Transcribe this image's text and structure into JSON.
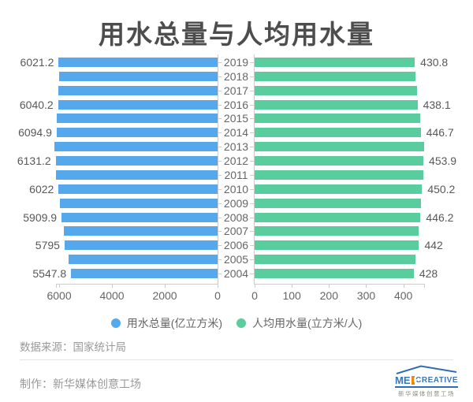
{
  "chart_data": {
    "type": "bar",
    "orientation": "horizontal-bidirectional",
    "title": "用水总量与人均用水量",
    "categories": [
      "2019",
      "2018",
      "2017",
      "2016",
      "2015",
      "2014",
      "2013",
      "2012",
      "2011",
      "2010",
      "2009",
      "2008",
      "2007",
      "2006",
      "2005",
      "2004"
    ],
    "series": [
      {
        "name": "用水总量(亿立方米)",
        "side": "left",
        "color": "#55A8EC",
        "values": [
          6021.2,
          6015.5,
          6043.4,
          6040.2,
          6103.2,
          6094.9,
          6183.4,
          6131.2,
          6107.2,
          6022,
          5965.2,
          5909.9,
          5818.7,
          5795,
          5633,
          5547.8
        ],
        "data_labels": [
          "6021.2",
          "",
          "",
          "6040.2",
          "",
          "6094.9",
          "",
          "6131.2",
          "",
          "6022",
          "",
          "5909.9",
          "",
          "5795",
          "",
          "5547.8"
        ],
        "axis_ticks": [
          "6000",
          "4000",
          "2000",
          "0"
        ],
        "axis_reversed": true,
        "axis_max": 6150
      },
      {
        "name": "人均用水量(立方米/人)",
        "side": "right",
        "color": "#5ACD9E",
        "values": [
          430.8,
          431.9,
          435.9,
          438.1,
          445.1,
          446.7,
          455.5,
          453.9,
          454.4,
          450.2,
          448,
          446.2,
          441.5,
          442,
          432.1,
          428
        ],
        "data_labels": [
          "430.8",
          "",
          "",
          "438.1",
          "",
          "446.7",
          "",
          "453.9",
          "",
          "450.2",
          "",
          "446.2",
          "",
          "442",
          "",
          "428"
        ],
        "axis_ticks": [
          "0",
          "100",
          "200",
          "300",
          "400"
        ],
        "axis_reversed": false,
        "axis_max": 457
      }
    ],
    "legend": [
      "用水总量(亿立方米)",
      "人均用水量(立方米/人)"
    ],
    "legend_position": "bottom",
    "grid": false
  },
  "footer": {
    "source_label": "数据来源：国家统计局",
    "credit_label": "制作：新华媒体创意工场"
  },
  "logo": {
    "text_pre": "ME",
    "text_post": "CREATIVE",
    "tagline": "新华媒体创意工场"
  },
  "colors": {
    "bar_left": "#55A8EC",
    "bar_right": "#5ACD9E",
    "title_text": "#4D4D4D",
    "axis_line": "#CCCCCC",
    "value_label_text": "#585858",
    "axis_label_text": "#666666",
    "footer_text": "#999999",
    "logo_blue": "#2F6DB3",
    "logo_orange": "#F2860F"
  }
}
